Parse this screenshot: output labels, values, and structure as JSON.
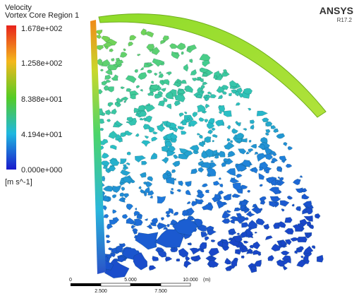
{
  "header": {
    "variable": "Velocity",
    "region": "Vortex Core Region 1",
    "brand": "ANSYS",
    "version": "R17.2"
  },
  "legend": {
    "labels": [
      "1.678e+002",
      "1.258e+002",
      "8.388e+001",
      "4.194e+001",
      "0.000e+000"
    ],
    "unit": "[m s^-1]"
  },
  "scale_bar": {
    "top_labels": [
      "0",
      "5.000",
      "10.000"
    ],
    "unit": "(m)",
    "bottom_labels": [
      "2.500",
      "7.500"
    ]
  }
}
